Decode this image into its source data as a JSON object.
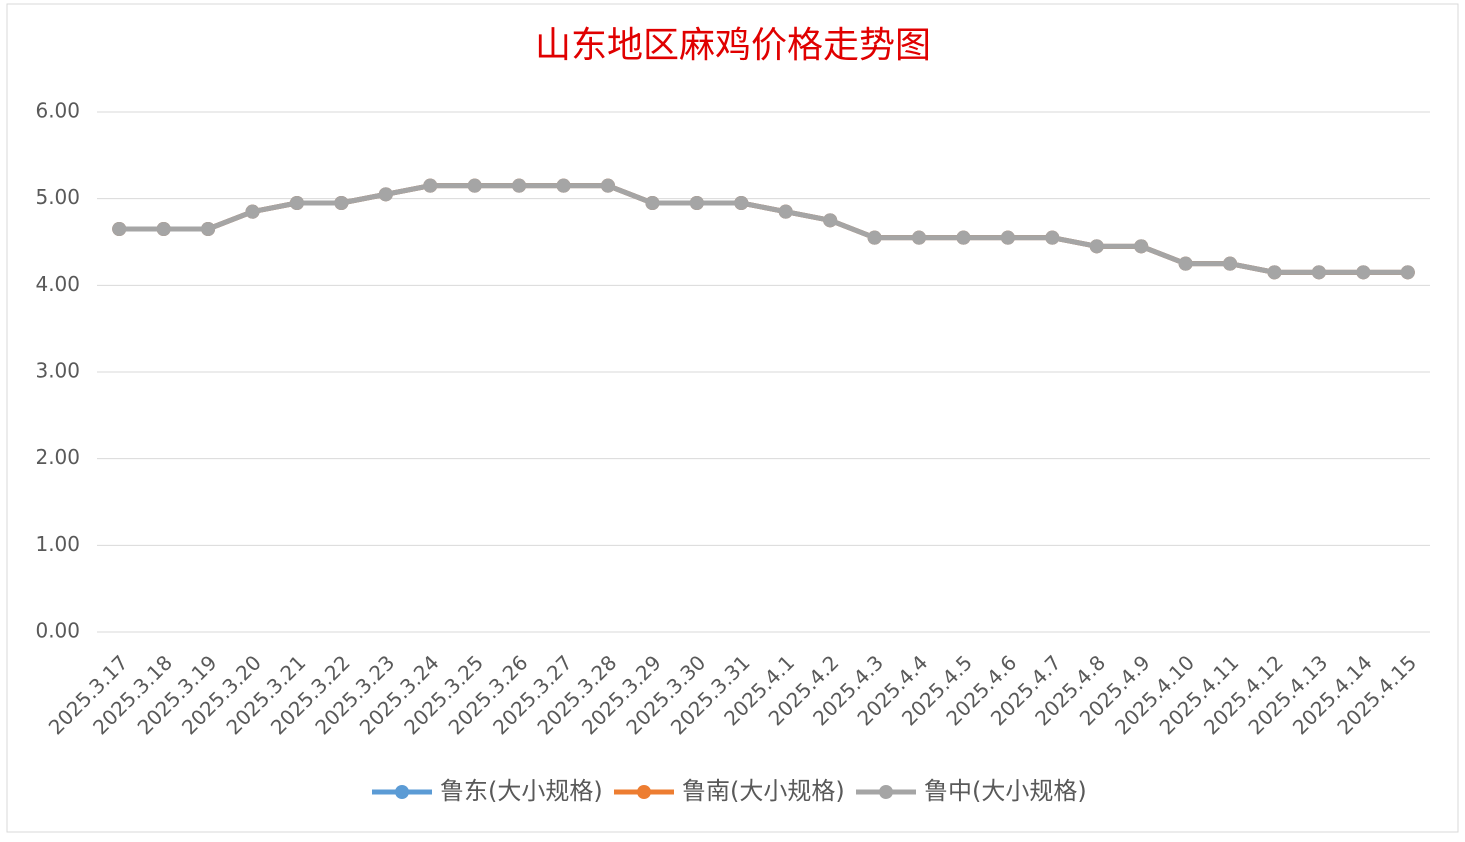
{
  "chart_data": {
    "type": "line",
    "title": "山东地区麻鸡价格走势图",
    "categories": [
      "2025.3.17",
      "2025.3.18",
      "2025.3.19",
      "2025.3.20",
      "2025.3.21",
      "2025.3.22",
      "2025.3.23",
      "2025.3.24",
      "2025.3.25",
      "2025.3.26",
      "2025.3.27",
      "2025.3.28",
      "2025.3.29",
      "2025.3.30",
      "2025.3.31",
      "2025.4.1",
      "2025.4.2",
      "2025.4.3",
      "2025.4.4",
      "2025.4.5",
      "2025.4.6",
      "2025.4.7",
      "2025.4.8",
      "2025.4.9",
      "2025.4.10",
      "2025.4.11",
      "2025.4.12",
      "2025.4.13",
      "2025.4.14",
      "2025.4.15"
    ],
    "series": [
      {
        "name": "鲁东(大小规格)",
        "color": "#5b9bd5",
        "values": [
          4.65,
          4.65,
          4.65,
          4.85,
          4.95,
          4.95,
          5.05,
          5.15,
          5.15,
          5.15,
          5.15,
          5.15,
          4.95,
          4.95,
          4.95,
          4.85,
          4.75,
          4.55,
          4.55,
          4.55,
          4.55,
          4.55,
          4.45,
          4.45,
          4.25,
          4.25,
          4.15,
          4.15,
          4.15,
          4.15
        ]
      },
      {
        "name": "鲁南(大小规格)",
        "color": "#ed7d31",
        "values": [
          4.65,
          4.65,
          4.65,
          4.85,
          4.95,
          4.95,
          5.05,
          5.15,
          5.15,
          5.15,
          5.15,
          5.15,
          4.95,
          4.95,
          4.95,
          4.85,
          4.75,
          4.55,
          4.55,
          4.55,
          4.55,
          4.55,
          4.45,
          4.45,
          4.25,
          4.25,
          4.15,
          4.15,
          4.15,
          4.15
        ]
      },
      {
        "name": "鲁中(大小规格)",
        "color": "#a5a5a5",
        "values": [
          4.65,
          4.65,
          4.65,
          4.85,
          4.95,
          4.95,
          5.05,
          5.15,
          5.15,
          5.15,
          5.15,
          5.15,
          4.95,
          4.95,
          4.95,
          4.85,
          4.75,
          4.55,
          4.55,
          4.55,
          4.55,
          4.55,
          4.45,
          4.45,
          4.25,
          4.25,
          4.15,
          4.15,
          4.15,
          4.15
        ]
      }
    ],
    "ylim": [
      0,
      6
    ],
    "yticks": [
      {
        "value": 0,
        "label": "0.00"
      },
      {
        "value": 1,
        "label": "1.00"
      },
      {
        "value": 2,
        "label": "2.00"
      },
      {
        "value": 3,
        "label": "3.00"
      },
      {
        "value": 4,
        "label": "4.00"
      },
      {
        "value": 5,
        "label": "5.00"
      },
      {
        "value": 6,
        "label": "6.00"
      }
    ],
    "grid": true,
    "legend": "bottom"
  }
}
